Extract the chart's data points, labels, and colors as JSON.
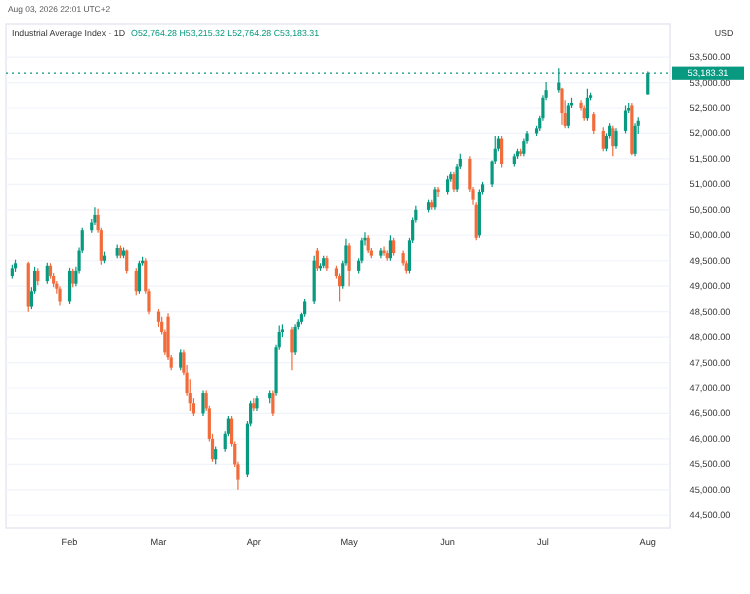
{
  "chart_data": {
    "type": "candlestick",
    "title": "Industrial Average Index · 1D",
    "ylabel": "USD",
    "annotations": [
      "O52,764.28 H53,215.32 L52,764.28 C53,183.31",
      "Aug 03, 2026 22:01 UTC+2"
    ],
    "colors": [
      "#089981",
      "#089981",
      "#f26b3a",
      "#089981",
      "#089981",
      "#f26b3a",
      "#089981",
      "#f26b3a",
      "#f26b3a",
      "#f26b3a",
      "#f26b3a",
      "#089981",
      "#f26b3a",
      "#089981",
      "#089981",
      "#089981",
      "#089981",
      "#089981",
      "#f26b3a",
      "#f26b3a",
      "#089981",
      "#089981",
      "#f26b3a",
      "#089981",
      "#f26b3a",
      "#f26b3a",
      "#089981",
      "#089981",
      "#f26b3a",
      "#f26b3a",
      "#f26b3a",
      "#f26b3a",
      "#f26b3a",
      "#f26b3a",
      "#f26b3a",
      "#089981",
      "#f26b3a",
      "#f26b3a",
      "#f26b3a",
      "#f26b3a",
      "#089981",
      "#f26b3a",
      "#f26b3a",
      "#f26b3a",
      "#089981",
      "#089981",
      "#089981",
      "#f26b3a",
      "#f26b3a",
      "#f26b3a",
      "#089981",
      "#089981",
      "#f26b3a",
      "#089981",
      "#089981",
      "#f26b3a",
      "#089981",
      "#089981",
      "#089981",
      "#f26b3a",
      "#089981",
      "#089981",
      "#089981",
      "#089981",
      "#089981",
      "#f26b3a",
      "#089981",
      "#089981",
      "#f26b3a",
      "#f26b3a",
      "#f26b3a",
      "#089981",
      "#089981",
      "#f26b3a",
      "#089981",
      "#089981",
      "#089981",
      "#f26b3a",
      "#f26b3a",
      "#089981",
      "#f26b3a",
      "#f26b3a",
      "#089981",
      "#f26b3a",
      "#f26b3a",
      "#f26b3a",
      "#089981",
      "#089981",
      "#089981",
      "#089981",
      "#f26b3a",
      "#089981",
      "#f26b3a",
      "#089981",
      "#089981",
      "#f26b3a",
      "#089981",
      "#089981",
      "#f26b3a",
      "#f26b3a",
      "#f26b3a",
      "#089981",
      "#089981",
      "#089981",
      "#089981",
      "#089981",
      "#f26b3a",
      "#089981",
      "#089981",
      "#f26b3a",
      "#089981",
      "#089981",
      "#089981",
      "#089981",
      "#089981",
      "#089981",
      "#089981",
      "#f26b3a",
      "#f26b3a",
      "#089981",
      "#089981",
      "#f26b3a",
      "#f26b3a",
      "#089981",
      "#089981",
      "#f26b3a",
      "#f26b3a",
      "#089981",
      "#089981",
      "#f26b3a",
      "#089981",
      "#089981",
      "#089981",
      "#f26b3a",
      "#089981",
      "#089981",
      "#089981"
    ],
    "x": [
      "2026-01-15",
      "2026-01-16",
      "2026-01-20",
      "2026-01-21",
      "2026-01-22",
      "2026-01-23",
      "2026-01-26",
      "2026-01-27",
      "2026-01-28",
      "2026-01-29",
      "2026-01-30",
      "2026-02-02",
      "2026-02-03",
      "2026-02-04",
      "2026-02-05",
      "2026-02-06",
      "2026-02-09",
      "2026-02-10",
      "2026-02-11",
      "2026-02-12",
      "2026-02-13",
      "2026-02-17",
      "2026-02-18",
      "2026-02-19",
      "2026-02-20",
      "2026-02-23",
      "2026-02-24",
      "2026-02-25",
      "2026-02-26",
      "2026-02-27",
      "2026-03-02",
      "2026-03-03",
      "2026-03-04",
      "2026-03-05",
      "2026-03-06",
      "2026-03-09",
      "2026-03-10",
      "2026-03-11",
      "2026-03-12",
      "2026-03-13",
      "2026-03-16",
      "2026-03-17",
      "2026-03-18",
      "2026-03-19",
      "2026-03-20",
      "2026-03-23",
      "2026-03-24",
      "2026-03-25",
      "2026-03-26",
      "2026-03-27",
      "2026-03-30",
      "2026-03-31",
      "2026-04-01",
      "2026-04-02",
      "2026-04-06",
      "2026-04-07",
      "2026-04-08",
      "2026-04-09",
      "2026-04-10",
      "2026-04-13",
      "2026-04-14",
      "2026-04-15",
      "2026-04-16",
      "2026-04-17",
      "2026-04-20",
      "2026-04-21",
      "2026-04-22",
      "2026-04-23",
      "2026-04-24",
      "2026-04-27",
      "2026-04-28",
      "2026-04-29",
      "2026-04-30",
      "2026-05-01",
      "2026-05-04",
      "2026-05-05",
      "2026-05-06",
      "2026-05-07",
      "2026-05-08",
      "2026-05-11",
      "2026-05-12",
      "2026-05-13",
      "2026-05-14",
      "2026-05-15",
      "2026-05-18",
      "2026-05-19",
      "2026-05-20",
      "2026-05-21",
      "2026-05-22",
      "2026-05-26",
      "2026-05-27",
      "2026-05-28",
      "2026-05-29",
      "2026-06-01",
      "2026-06-02",
      "2026-06-03",
      "2026-06-04",
      "2026-06-05",
      "2026-06-08",
      "2026-06-09",
      "2026-06-10",
      "2026-06-11",
      "2026-06-12",
      "2026-06-15",
      "2026-06-16",
      "2026-06-17",
      "2026-06-18",
      "2026-06-22",
      "2026-06-23",
      "2026-06-24",
      "2026-06-25",
      "2026-06-26",
      "2026-06-29",
      "2026-06-30",
      "2026-07-01",
      "2026-07-02",
      "2026-07-06",
      "2026-07-07",
      "2026-07-08",
      "2026-07-09",
      "2026-07-10",
      "2026-07-13",
      "2026-07-14",
      "2026-07-15",
      "2026-07-16",
      "2026-07-17",
      "2026-07-20",
      "2026-07-21",
      "2026-07-22",
      "2026-07-23",
      "2026-07-24",
      "2026-07-27",
      "2026-07-28",
      "2026-07-29",
      "2026-07-30",
      "2026-07-31",
      "2026-08-03"
    ],
    "ohlc": [
      [
        49200,
        49420,
        49150,
        49350
      ],
      [
        49350,
        49520,
        49280,
        49450
      ],
      [
        49450,
        49480,
        48500,
        48600
      ],
      [
        48600,
        48980,
        48550,
        48900
      ],
      [
        48900,
        49380,
        48850,
        49300
      ],
      [
        49300,
        49350,
        49020,
        49100
      ],
      [
        49100,
        49460,
        49050,
        49400
      ],
      [
        49400,
        49450,
        49150,
        49200
      ],
      [
        49200,
        49260,
        48980,
        49050
      ],
      [
        49050,
        49100,
        48850,
        48950
      ],
      [
        48950,
        49000,
        48620,
        48700
      ],
      [
        48700,
        49360,
        48650,
        49300
      ],
      [
        49300,
        49340,
        48980,
        49050
      ],
      [
        49050,
        49380,
        49000,
        49300
      ],
      [
        49300,
        49760,
        49250,
        49700
      ],
      [
        49700,
        50150,
        49650,
        50100
      ],
      [
        50100,
        50320,
        50050,
        50250
      ],
      [
        50250,
        50550,
        50200,
        50400
      ],
      [
        50400,
        50520,
        50050,
        50100
      ],
      [
        50100,
        50150,
        49420,
        49500
      ],
      [
        49500,
        49680,
        49450,
        49600
      ],
      [
        49600,
        49820,
        49550,
        49750
      ],
      [
        49750,
        49800,
        49550,
        49600
      ],
      [
        49600,
        49760,
        49550,
        49700
      ],
      [
        49700,
        49720,
        49250,
        49300
      ],
      [
        49300,
        49350,
        48820,
        48900
      ],
      [
        48900,
        49500,
        48850,
        49450
      ],
      [
        49450,
        49580,
        49400,
        49500
      ],
      [
        49500,
        49550,
        48850,
        48900
      ],
      [
        48900,
        48950,
        48450,
        48500
      ],
      [
        48500,
        48550,
        48200,
        48300
      ],
      [
        48300,
        48400,
        48050,
        48100
      ],
      [
        48100,
        48150,
        47650,
        47700
      ],
      [
        48400,
        48470,
        47550,
        47600
      ],
      [
        47600,
        47650,
        47350,
        47400
      ],
      [
        47400,
        47760,
        47350,
        47700
      ],
      [
        47700,
        47750,
        47250,
        47300
      ],
      [
        47300,
        47450,
        46850,
        46900
      ],
      [
        46900,
        47170,
        46550,
        46700
      ],
      [
        46700,
        46800,
        46450,
        46500
      ],
      [
        46500,
        46950,
        46450,
        46900
      ],
      [
        46900,
        46950,
        46550,
        46600
      ],
      [
        46600,
        46650,
        45950,
        46000
      ],
      [
        46000,
        46100,
        45550,
        45600
      ],
      [
        45600,
        45850,
        45500,
        45800
      ],
      [
        45800,
        46150,
        45750,
        46100
      ],
      [
        46100,
        46450,
        46050,
        46400
      ],
      [
        46400,
        46450,
        45850,
        45900
      ],
      [
        45900,
        45950,
        45450,
        45500
      ],
      [
        45500,
        45550,
        45000,
        45200
      ],
      [
        45300,
        46350,
        45250,
        46300
      ],
      [
        46300,
        46750,
        46250,
        46700
      ],
      [
        46700,
        46800,
        46550,
        46600
      ],
      [
        46600,
        46850,
        46550,
        46800
      ],
      [
        46800,
        46950,
        46700,
        46900
      ],
      [
        46900,
        46950,
        46450,
        46500
      ],
      [
        46900,
        47850,
        46850,
        47800
      ],
      [
        47800,
        48230,
        47750,
        48100
      ],
      [
        48100,
        48250,
        48000,
        48150
      ],
      [
        48150,
        48200,
        47350,
        47700
      ],
      [
        47700,
        48250,
        47650,
        48200
      ],
      [
        48200,
        48350,
        48150,
        48300
      ],
      [
        48300,
        48480,
        48250,
        48450
      ],
      [
        48450,
        48750,
        48400,
        48700
      ],
      [
        48700,
        49600,
        48650,
        49500
      ],
      [
        49700,
        49750,
        49300,
        49350
      ],
      [
        49350,
        49450,
        49300,
        49400
      ],
      [
        49400,
        49600,
        49350,
        49550
      ],
      [
        49550,
        49600,
        49300,
        49350
      ],
      [
        49350,
        49400,
        49150,
        49200
      ],
      [
        49200,
        49250,
        48700,
        49000
      ],
      [
        49000,
        49500,
        48950,
        49450
      ],
      [
        49450,
        49930,
        49400,
        49800
      ],
      [
        49800,
        49850,
        49000,
        49300
      ],
      [
        49300,
        49550,
        49250,
        49500
      ],
      [
        49500,
        49950,
        49450,
        49900
      ],
      [
        49900,
        50060,
        49800,
        49950
      ],
      [
        49950,
        50000,
        49650,
        49700
      ],
      [
        49700,
        49750,
        49550,
        49600
      ],
      [
        49600,
        49750,
        49550,
        49700
      ],
      [
        49700,
        49780,
        49600,
        49650
      ],
      [
        49650,
        49700,
        49500,
        49550
      ],
      [
        49550,
        50000,
        49500,
        49900
      ],
      [
        49900,
        49950,
        49600,
        49650
      ],
      [
        49650,
        49700,
        49400,
        49450
      ],
      [
        49450,
        49500,
        49250,
        49300
      ],
      [
        49300,
        49950,
        49250,
        49900
      ],
      [
        49900,
        50350,
        49850,
        50300
      ],
      [
        50300,
        50580,
        50250,
        50500
      ],
      [
        50500,
        50700,
        50450,
        50650
      ],
      [
        50650,
        50700,
        50500,
        50550
      ],
      [
        50550,
        50950,
        50500,
        50900
      ],
      [
        50900,
        50950,
        50750,
        50850
      ],
      [
        50850,
        51170,
        50800,
        51100
      ],
      [
        51100,
        51250,
        51050,
        51200
      ],
      [
        51200,
        51250,
        50850,
        50900
      ],
      [
        50900,
        51400,
        50850,
        51350
      ],
      [
        51350,
        51600,
        51300,
        51500
      ],
      [
        51500,
        51550,
        50850,
        50900
      ],
      [
        50900,
        50950,
        50600,
        50700
      ],
      [
        50600,
        50650,
        49900,
        49950
      ],
      [
        50000,
        50900,
        49950,
        50850
      ],
      [
        50850,
        51050,
        50800,
        51000
      ],
      [
        51000,
        51470,
        50950,
        51450
      ],
      [
        51450,
        51950,
        51400,
        51700
      ],
      [
        51700,
        51950,
        51650,
        51900
      ],
      [
        51900,
        51950,
        51330,
        51400
      ],
      [
        51400,
        51600,
        51350,
        51550
      ],
      [
        51550,
        51700,
        51500,
        51650
      ],
      [
        51650,
        51700,
        51550,
        51600
      ],
      [
        51600,
        51900,
        51550,
        51850
      ],
      [
        51850,
        52050,
        51800,
        52000
      ],
      [
        52000,
        52150,
        51950,
        52100
      ],
      [
        52100,
        52350,
        52050,
        52300
      ],
      [
        52300,
        52750,
        52250,
        52700
      ],
      [
        52700,
        53010,
        52650,
        52850
      ],
      [
        52850,
        53280,
        52800,
        53000
      ],
      [
        52880,
        52900,
        52170,
        52400
      ],
      [
        52400,
        52650,
        52100,
        52150
      ],
      [
        52150,
        52600,
        52100,
        52550
      ],
      [
        52550,
        52700,
        52500,
        52600
      ],
      [
        52600,
        52650,
        52450,
        52500
      ],
      [
        52500,
        52550,
        52250,
        52300
      ],
      [
        52300,
        52880,
        52250,
        52700
      ],
      [
        52700,
        52800,
        52650,
        52750
      ],
      [
        52380,
        52420,
        51990,
        52050
      ],
      [
        52050,
        52120,
        51650,
        51700
      ],
      [
        51700,
        52000,
        51650,
        51950
      ],
      [
        51950,
        52200,
        51900,
        52150
      ],
      [
        52100,
        52150,
        51550,
        51750
      ],
      [
        51750,
        52100,
        51700,
        52050
      ],
      [
        52050,
        52550,
        52000,
        52450
      ],
      [
        52450,
        52600,
        52400,
        52500
      ],
      [
        52550,
        52600,
        51570,
        51600
      ],
      [
        51600,
        52200,
        51550,
        52150
      ],
      [
        52150,
        52320,
        51990,
        52250
      ],
      [
        52764.28,
        53215.32,
        52764.28,
        53183.31
      ]
    ],
    "xlim": [
      "2026-01-13",
      "2026-08-10"
    ],
    "xticks": [
      {
        "value": "2026-02-02",
        "label": "Feb"
      },
      {
        "value": "2026-03-02",
        "label": "Mar"
      },
      {
        "value": "2026-04-01",
        "label": "Apr"
      },
      {
        "value": "2026-05-01",
        "label": "May"
      },
      {
        "value": "2026-06-01",
        "label": "Jun"
      },
      {
        "value": "2026-07-01",
        "label": "Jul"
      },
      {
        "value": "2026-08-03",
        "label": "Aug"
      }
    ],
    "ylim": [
      44250,
      54150
    ],
    "yticks": [
      {
        "value": 44500,
        "label": "44,500.00"
      },
      {
        "value": 45000,
        "label": "45,000.00"
      },
      {
        "value": 45500,
        "label": "45,500.00"
      },
      {
        "value": 46000,
        "label": "46,000.00"
      },
      {
        "value": 46500,
        "label": "46,500.00"
      },
      {
        "value": 47000,
        "label": "47,000.00"
      },
      {
        "value": 47500,
        "label": "47,500.00"
      },
      {
        "value": 48000,
        "label": "48,000.00"
      },
      {
        "value": 48500,
        "label": "48,500.00"
      },
      {
        "value": 49000,
        "label": "49,000.00"
      },
      {
        "value": 49500,
        "label": "49,500.00"
      },
      {
        "value": 50000,
        "label": "50,000.00"
      },
      {
        "value": 50500,
        "label": "50,500.00"
      },
      {
        "value": 51000,
        "label": "51,000.00"
      },
      {
        "value": 51500,
        "label": "51,500.00"
      },
      {
        "value": 52000,
        "label": "52,000.00"
      },
      {
        "value": 52500,
        "label": "52,500.00"
      },
      {
        "value": 53000,
        "label": "53,000.00"
      },
      {
        "value": 53500,
        "label": "53,500.00"
      }
    ],
    "grid": "y",
    "ref_lines": [
      {
        "axis": "y",
        "value": 53183.31,
        "label": "53,183.31",
        "color": "#089981",
        "line_style": "dotted"
      }
    ]
  }
}
